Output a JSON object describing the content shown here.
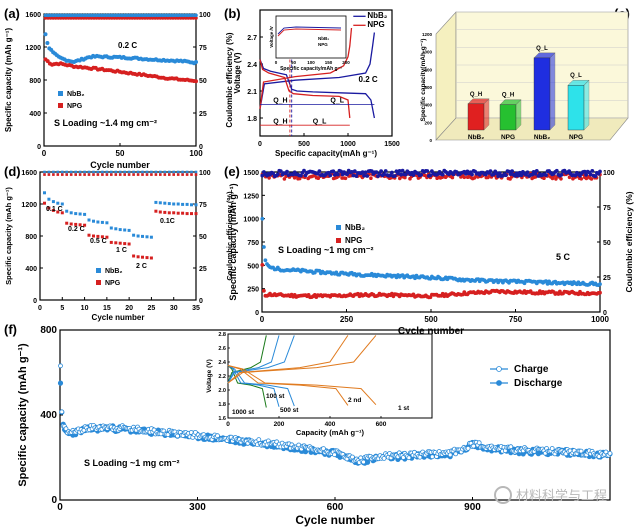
{
  "colors": {
    "nbb2": "#2a8ad8",
    "npg": "#d62020",
    "axis": "#000000",
    "annot": "#1a1aa0",
    "wm": "#c0c0c0"
  },
  "panel_labels": {
    "a": "(a)",
    "b": "(b)",
    "c": "(c)",
    "d": "(d)",
    "e": "(e)",
    "f": "(f)"
  },
  "watermark": "材料科学与工程",
  "chart_data": [
    {
      "id": "a",
      "type": "line",
      "xlabel": "Cycle number",
      "ylabel": "Specific capacity (mAh g⁻¹)",
      "y2label": "Coulombic efficiency (%)",
      "xlim": [
        0,
        100
      ],
      "ylim": [
        0,
        1600
      ],
      "y2lim": [
        0,
        100
      ],
      "xticks": [
        0,
        50,
        100
      ],
      "yticks": [
        0,
        400,
        800,
        1200,
        1600
      ],
      "y2ticks": [
        0,
        25,
        50,
        75,
        100
      ],
      "rate_label": "0.2 C",
      "loading_label": "S Loading ~1.4 mg cm⁻²",
      "legend": [
        "NbB₂",
        "NPG"
      ],
      "series": [
        {
          "name": "NbB₂",
          "x": [
            1,
            3,
            6,
            10,
            15,
            20,
            25,
            30,
            35,
            40,
            50,
            60,
            70,
            80,
            90,
            100
          ],
          "values": [
            1350,
            1200,
            1130,
            1070,
            1040,
            1020,
            1050,
            1080,
            1085,
            1080,
            1075,
            1065,
            1050,
            1040,
            1030,
            1010
          ]
        },
        {
          "name": "NPG",
          "x": [
            1,
            5,
            10,
            20,
            30,
            40,
            50,
            60,
            70,
            80,
            90,
            100
          ],
          "values": [
            1050,
            990,
            1000,
            965,
            945,
            925,
            900,
            875,
            850,
            825,
            805,
            790
          ]
        },
        {
          "name": "NbB₂ CE",
          "x": [
            1,
            100
          ],
          "values": [
            99,
            99
          ]
        },
        {
          "name": "NPG CE",
          "x": [
            1,
            100
          ],
          "values": [
            97,
            97
          ]
        }
      ]
    },
    {
      "id": "b",
      "type": "line",
      "xlabel": "Specific capacity(mAh g⁻¹)",
      "ylabel": "Voltage (V)",
      "xlim": [
        0,
        1500
      ],
      "ylim": [
        1.6,
        3.0
      ],
      "xticks": [
        0,
        500,
        1000,
        1500
      ],
      "yticks": [
        1.8,
        2.1,
        2.4,
        2.7
      ],
      "rate_label": "0.2 C",
      "legend": [
        "NbB₂",
        "NPG"
      ],
      "annotations": [
        "Q_H",
        "Q_L",
        "Q_H",
        "Q_L"
      ],
      "inset": {
        "xlabel": "Specific capacity/mAh g⁻¹",
        "ylabel": "Voltage /V",
        "xticks": [
          0,
          50,
          100,
          150,
          200
        ],
        "legend": [
          "NbB₂",
          "NPG"
        ]
      },
      "series": [
        {
          "name": "NbB₂ discharge",
          "x": [
            0,
            40,
            120,
            300,
            360,
            420,
            600,
            900,
            1200,
            1260,
            1300
          ],
          "values": [
            2.45,
            2.35,
            2.32,
            2.28,
            2.12,
            2.1,
            2.09,
            2.08,
            2.07,
            2.0,
            1.8
          ]
        },
        {
          "name": "NbB₂ charge",
          "x": [
            0,
            50,
            400,
            900,
            1200,
            1250,
            1280,
            1300
          ],
          "values": [
            1.9,
            2.18,
            2.22,
            2.25,
            2.3,
            2.4,
            2.6,
            2.75
          ]
        },
        {
          "name": "NPG discharge",
          "x": [
            0,
            30,
            100,
            280,
            330,
            380,
            600,
            900,
            1000,
            1020
          ],
          "values": [
            2.45,
            2.34,
            2.3,
            2.25,
            2.1,
            2.07,
            2.05,
            2.04,
            2.0,
            1.8
          ]
        },
        {
          "name": "NPG charge",
          "x": [
            0,
            40,
            400,
            800,
            950,
            1000,
            1020,
            1040
          ],
          "values": [
            1.9,
            2.2,
            2.26,
            2.3,
            2.38,
            2.48,
            2.6,
            2.8
          ]
        }
      ]
    },
    {
      "id": "c",
      "type": "bar",
      "ylabel": "Specific capacity(mAh g⁻¹)",
      "ylim": [
        0,
        1200
      ],
      "yticks": [
        0,
        200,
        400,
        600,
        800,
        1000,
        1200
      ],
      "categories": [
        "NbB₂",
        "NPG",
        "NbB₂",
        "NPG"
      ],
      "bar_labels": [
        "Q_H",
        "Q_H",
        "Q_L",
        "Q_L"
      ],
      "values": [
        410,
        400,
        930,
        620
      ],
      "bar_colors": [
        "#e02020",
        "#26c030",
        "#1f2ee0",
        "#2ee2ea"
      ]
    },
    {
      "id": "d",
      "type": "scatter",
      "xlabel": "Cycle number",
      "ylabel": "Specific capacity (mAh g⁻¹)",
      "y2label": "Coulombic efficiency (%)",
      "xlim": [
        0,
        35
      ],
      "ylim": [
        0,
        1600
      ],
      "y2lim": [
        0,
        100
      ],
      "xticks": [
        0,
        5,
        10,
        15,
        20,
        25,
        30,
        35
      ],
      "yticks": [
        0,
        400,
        800,
        1200,
        1600
      ],
      "y2ticks": [
        0,
        25,
        50,
        75,
        100
      ],
      "rate_labels": [
        "0.1 C",
        "0.2 C",
        "0.5 C",
        "1 C",
        "2 C",
        "0.1C"
      ],
      "legend": [
        "NbB₂",
        "NPG"
      ],
      "series": [
        {
          "name": "NbB₂",
          "x": [
            1,
            2,
            3,
            4,
            5,
            6,
            7,
            8,
            9,
            10,
            11,
            12,
            13,
            14,
            15,
            16,
            17,
            18,
            19,
            20,
            21,
            22,
            23,
            24,
            25,
            26,
            27,
            28,
            29,
            30,
            31,
            32,
            33,
            34,
            35
          ],
          "values": [
            1340,
            1260,
            1230,
            1210,
            1200,
            1110,
            1090,
            1080,
            1075,
            1070,
            1000,
            985,
            975,
            970,
            965,
            900,
            890,
            880,
            875,
            870,
            810,
            800,
            795,
            790,
            785,
            1220,
            1215,
            1210,
            1205,
            1200,
            1200,
            1195,
            1195,
            1190,
            1190
          ]
        },
        {
          "name": "NPG",
          "x": [
            1,
            2,
            3,
            4,
            5,
            6,
            7,
            8,
            9,
            10,
            11,
            12,
            13,
            14,
            15,
            16,
            17,
            18,
            19,
            20,
            21,
            22,
            23,
            24,
            25,
            26,
            27,
            28,
            29,
            30,
            31,
            32,
            33,
            34,
            35
          ],
          "values": [
            1210,
            1150,
            1120,
            1100,
            1090,
            960,
            950,
            945,
            940,
            935,
            810,
            800,
            795,
            790,
            785,
            720,
            715,
            710,
            705,
            700,
            550,
            540,
            535,
            530,
            525,
            1110,
            1100,
            1095,
            1090,
            1090,
            1085,
            1085,
            1080,
            1080,
            1080
          ]
        },
        {
          "name": "NbB₂ CE",
          "x": [
            1,
            35
          ],
          "values": [
            100,
            100
          ]
        },
        {
          "name": "NPG CE",
          "x": [
            1,
            35
          ],
          "values": [
            98,
            98
          ]
        }
      ]
    },
    {
      "id": "e",
      "type": "scatter",
      "xlabel": "Cycle number",
      "ylabel": "Specific capacity (mAh g⁻¹)",
      "y2label": "Coulombic efficiency (%)",
      "xlim": [
        0,
        1000
      ],
      "ylim": [
        0,
        1500
      ],
      "y2lim": [
        0,
        100
      ],
      "xticks": [
        0,
        250,
        500,
        750,
        1000
      ],
      "yticks": [
        0,
        250,
        500,
        750,
        1000,
        1250,
        1500
      ],
      "y2ticks": [
        0,
        25,
        50,
        75,
        100
      ],
      "rate_label": "5 C",
      "loading_label": "S Loading ~1 mg cm⁻²",
      "legend": [
        "NbB₂",
        "NPG"
      ],
      "series": [
        {
          "name": "NbB₂",
          "x": [
            1,
            5,
            10,
            20,
            50,
            100,
            200,
            300,
            400,
            500,
            600,
            700,
            800,
            900,
            1000
          ],
          "values": [
            1000,
            700,
            550,
            480,
            460,
            445,
            420,
            400,
            385,
            370,
            345,
            330,
            320,
            310,
            300
          ]
        },
        {
          "name": "NPG",
          "x": [
            1,
            5,
            10,
            20,
            50,
            100,
            200,
            300,
            400,
            500,
            600,
            700,
            800,
            900,
            1000
          ],
          "values": [
            500,
            220,
            180,
            190,
            180,
            175,
            170,
            185,
            180,
            170,
            200,
            220,
            210,
            205,
            200
          ]
        },
        {
          "name": "NbB₂ CE",
          "x": [
            1,
            1000
          ],
          "values": [
            99,
            99
          ]
        },
        {
          "name": "NPG CE",
          "x": [
            1,
            1000
          ],
          "values": [
            97,
            97
          ]
        }
      ]
    },
    {
      "id": "f",
      "type": "scatter",
      "xlabel": "Cycle number",
      "ylabel": "Specific capacity (mAh g⁻¹)",
      "xlim": [
        0,
        1200
      ],
      "ylim": [
        0,
        800
      ],
      "xticks": [
        0,
        300,
        600,
        900
      ],
      "yticks": [
        0,
        400,
        800
      ],
      "loading_label": "S Loading ~1 mg cm⁻²",
      "legend": [
        "Charge",
        "Discharge"
      ],
      "inset": {
        "xlabel": "Capacity (mAh g⁻¹)",
        "ylabel": "Voltage (V)",
        "xlim": [
          0,
          800
        ],
        "ylim": [
          1.6,
          2.8
        ],
        "xticks": [
          0,
          200,
          400,
          600
        ],
        "yticks": [
          1.6,
          1.8,
          2.0,
          2.2,
          2.4,
          2.6,
          2.8
        ],
        "curve_labels": [
          "1000 st",
          "500 st",
          "100 st",
          "2 nd",
          "1 st"
        ],
        "curve_colors": [
          "#1a7a1a",
          "#2a8ad8",
          "#2a8ad8",
          "#e07b20",
          "#e07b20"
        ]
      },
      "series": [
        {
          "name": "Discharge",
          "x": [
            1,
            3,
            8,
            20,
            50,
            100,
            150,
            200,
            300,
            400,
            500,
            600,
            650,
            700,
            800,
            850,
            880,
            900,
            950,
            1000,
            1100,
            1200
          ],
          "values": [
            560,
            420,
            330,
            310,
            330,
            340,
            330,
            320,
            300,
            275,
            250,
            220,
            180,
            200,
            210,
            215,
            235,
            260,
            240,
            230,
            225,
            210
          ]
        },
        {
          "name": "Charge",
          "x": [
            1,
            3,
            8,
            20,
            50,
            100,
            150,
            200,
            300,
            400,
            500,
            600,
            650,
            700,
            800,
            850,
            880,
            900,
            950,
            1000,
            1100,
            1200
          ],
          "values": [
            620,
            430,
            340,
            315,
            335,
            345,
            335,
            325,
            305,
            280,
            255,
            225,
            185,
            205,
            215,
            220,
            240,
            265,
            245,
            235,
            228,
            212
          ]
        }
      ]
    }
  ]
}
